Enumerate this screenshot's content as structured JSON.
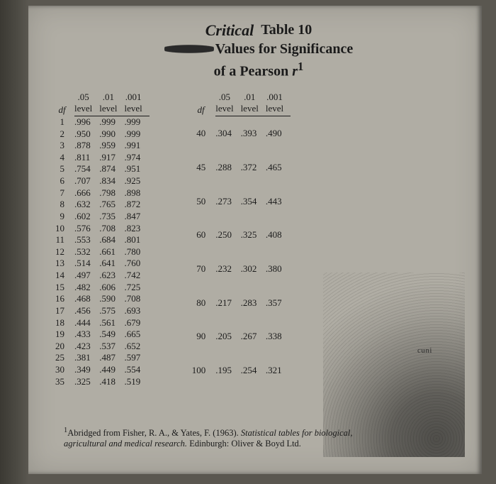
{
  "title": {
    "handwritten": "Critical",
    "line1_right": "Table 10",
    "line2_right": "Values for Significance",
    "line3": "of a Pearson",
    "line3_ital": "r",
    "line3_sup": "1"
  },
  "columns": {
    "df": "df",
    "c05_top": ".05",
    "c01_top": ".01",
    "c001_top": ".001",
    "level": "level"
  },
  "table_left": {
    "rows": [
      {
        "df": "1",
        "a": ".996",
        "b": ".999",
        "c": ".999"
      },
      {
        "df": "2",
        "a": ".950",
        "b": ".990",
        "c": ".999"
      },
      {
        "df": "3",
        "a": ".878",
        "b": ".959",
        "c": ".991"
      },
      {
        "df": "4",
        "a": ".811",
        "b": ".917",
        "c": ".974"
      },
      {
        "df": "5",
        "a": ".754",
        "b": ".874",
        "c": ".951"
      },
      {
        "df": "6",
        "a": ".707",
        "b": ".834",
        "c": ".925"
      },
      {
        "df": "7",
        "a": ".666",
        "b": ".798",
        "c": ".898"
      },
      {
        "df": "8",
        "a": ".632",
        "b": ".765",
        "c": ".872"
      },
      {
        "df": "9",
        "a": ".602",
        "b": ".735",
        "c": ".847"
      },
      {
        "df": "10",
        "a": ".576",
        "b": ".708",
        "c": ".823"
      },
      {
        "df": "11",
        "a": ".553",
        "b": ".684",
        "c": ".801"
      },
      {
        "df": "12",
        "a": ".532",
        "b": ".661",
        "c": ".780"
      },
      {
        "df": "13",
        "a": ".514",
        "b": ".641",
        "c": ".760"
      },
      {
        "df": "14",
        "a": ".497",
        "b": ".623",
        "c": ".742"
      },
      {
        "df": "15",
        "a": ".482",
        "b": ".606",
        "c": ".725"
      },
      {
        "df": "16",
        "a": ".468",
        "b": ".590",
        "c": ".708"
      },
      {
        "df": "17",
        "a": ".456",
        "b": ".575",
        "c": ".693"
      },
      {
        "df": "18",
        "a": ".444",
        "b": ".561",
        "c": ".679"
      },
      {
        "df": "19",
        "a": ".433",
        "b": ".549",
        "c": ".665"
      },
      {
        "df": "20",
        "a": ".423",
        "b": ".537",
        "c": ".652"
      },
      {
        "df": "25",
        "a": ".381",
        "b": ".487",
        "c": ".597"
      },
      {
        "df": "30",
        "a": ".349",
        "b": ".449",
        "c": ".554"
      },
      {
        "df": "35",
        "a": ".325",
        "b": ".418",
        "c": ".519"
      }
    ]
  },
  "table_right": {
    "rows": [
      {
        "df": "40",
        "a": ".304",
        "b": ".393",
        "c": ".490"
      },
      {
        "df": "45",
        "a": ".288",
        "b": ".372",
        "c": ".465"
      },
      {
        "df": "50",
        "a": ".273",
        "b": ".354",
        "c": ".443"
      },
      {
        "df": "60",
        "a": ".250",
        "b": ".325",
        "c": ".408"
      },
      {
        "df": "70",
        "a": ".232",
        "b": ".302",
        "c": ".380"
      },
      {
        "df": "80",
        "a": ".217",
        "b": ".283",
        "c": ".357"
      },
      {
        "df": "90",
        "a": ".205",
        "b": ".267",
        "c": ".338"
      },
      {
        "df": "100",
        "a": ".195",
        "b": ".254",
        "c": ".321"
      }
    ]
  },
  "side_text": "cuni",
  "footnote": {
    "sup": "1",
    "pre": "Abridged from Fisher, R. A., & Yates, F. (1963). ",
    "ital": "Statistical tables for biological, agricultural and medical research.",
    "post": " Edinburgh: Oliver & Boyd Ltd."
  },
  "style": {
    "page_bg": "#b0ada4",
    "outer_bg": "#5a5750",
    "text_color": "#1b1b1b",
    "title_fontsize_pt": 20,
    "body_fontsize_pt": 13,
    "footnote_fontsize_pt": 12
  }
}
